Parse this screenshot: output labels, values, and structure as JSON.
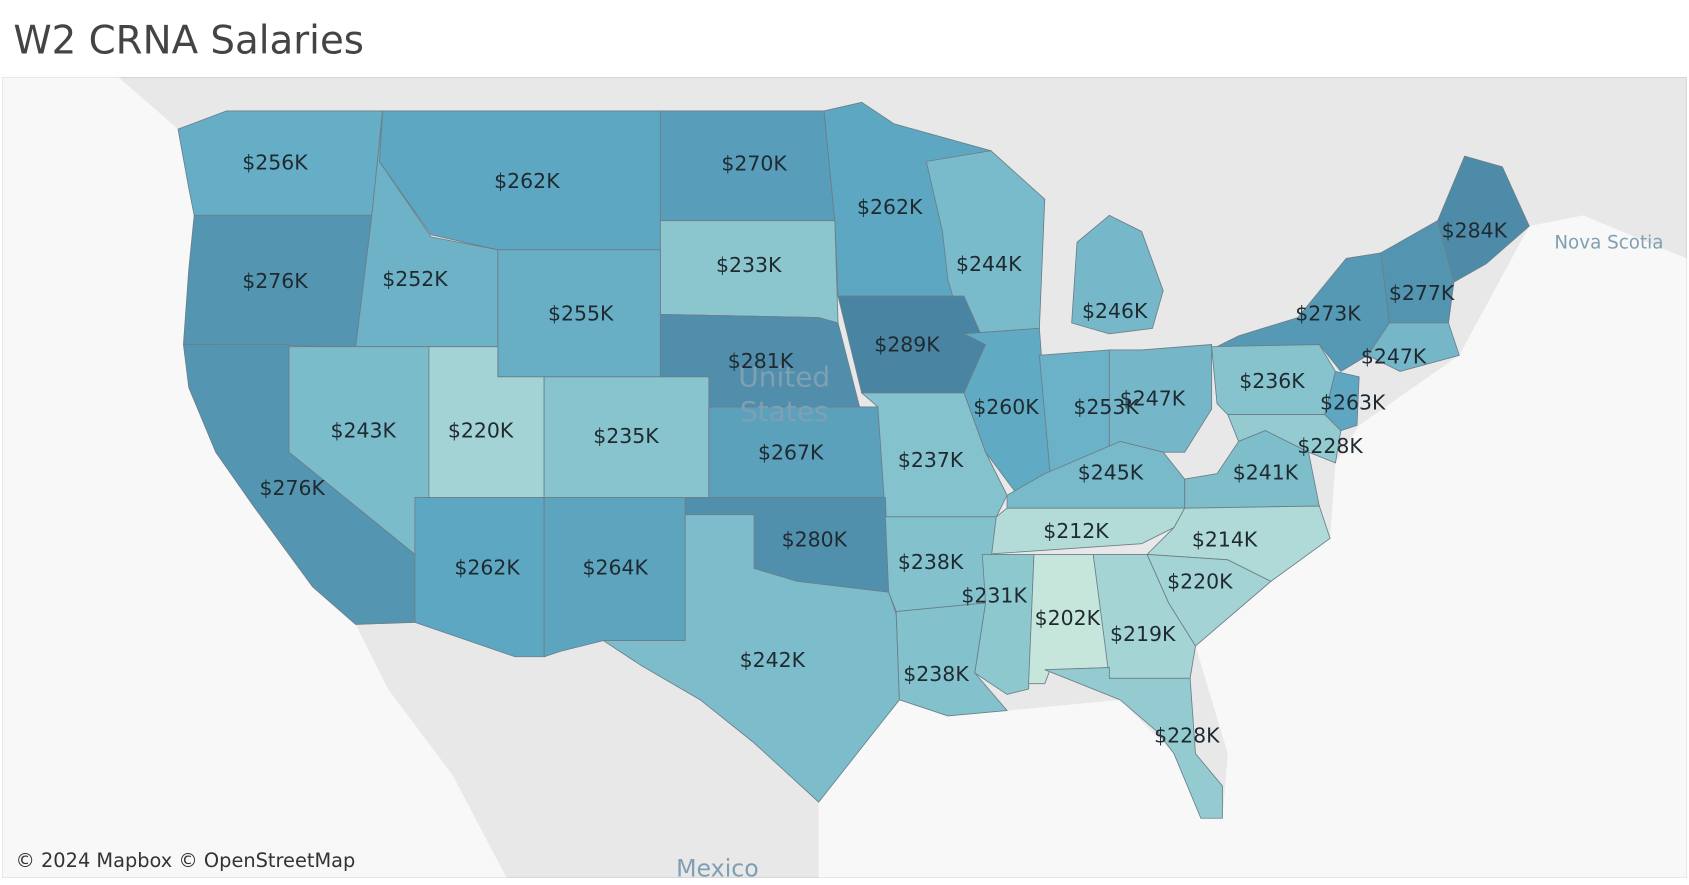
{
  "title": "W2 CRNA Salaries",
  "attribution": "© 2024 Mapbox © OpenStreetMap",
  "basemap_labels": [
    "United States",
    "Mexico",
    "Nova Scotia"
  ],
  "map": {
    "type": "choropleth",
    "values": [
      256000,
      262000,
      270000,
      262000,
      244000,
      284000,
      276000,
      252000,
      233000,
      255000,
      246000,
      277000,
      273000,
      281000,
      289000,
      247000,
      260000,
      253000,
      247000,
      236000,
      263000,
      243000,
      220000,
      235000,
      267000,
      237000,
      228000,
      245000,
      241000,
      276000,
      212000,
      280000,
      214000,
      238000,
      220000,
      262000,
      264000,
      231000,
      202000,
      219000,
      242000,
      238000,
      228000
    ],
    "value_labels": [
      "$256K",
      "$262K",
      "$270K",
      "$262K",
      "$244K",
      "$284K",
      "$276K",
      "$252K",
      "$233K",
      "$255K",
      "$246K",
      "$277K",
      "$273K",
      "$281K",
      "$289K",
      "$247K",
      "$260K",
      "$253K",
      "$247K",
      "$236K",
      "$263K",
      "$243K",
      "$220K",
      "$235K",
      "$267K",
      "$237K",
      "$228K",
      "$245K",
      "$241K",
      "$276K",
      "$212K",
      "$280K",
      "$214K",
      "$238K",
      "$220K",
      "$262K",
      "$264K",
      "$231K",
      "$202K",
      "$219K",
      "$242K",
      "$238K",
      "$228K"
    ],
    "colors": [
      "#c6e6dc",
      "#8ec8cf",
      "#60aac4",
      "#4a84a3"
    ]
  }
}
